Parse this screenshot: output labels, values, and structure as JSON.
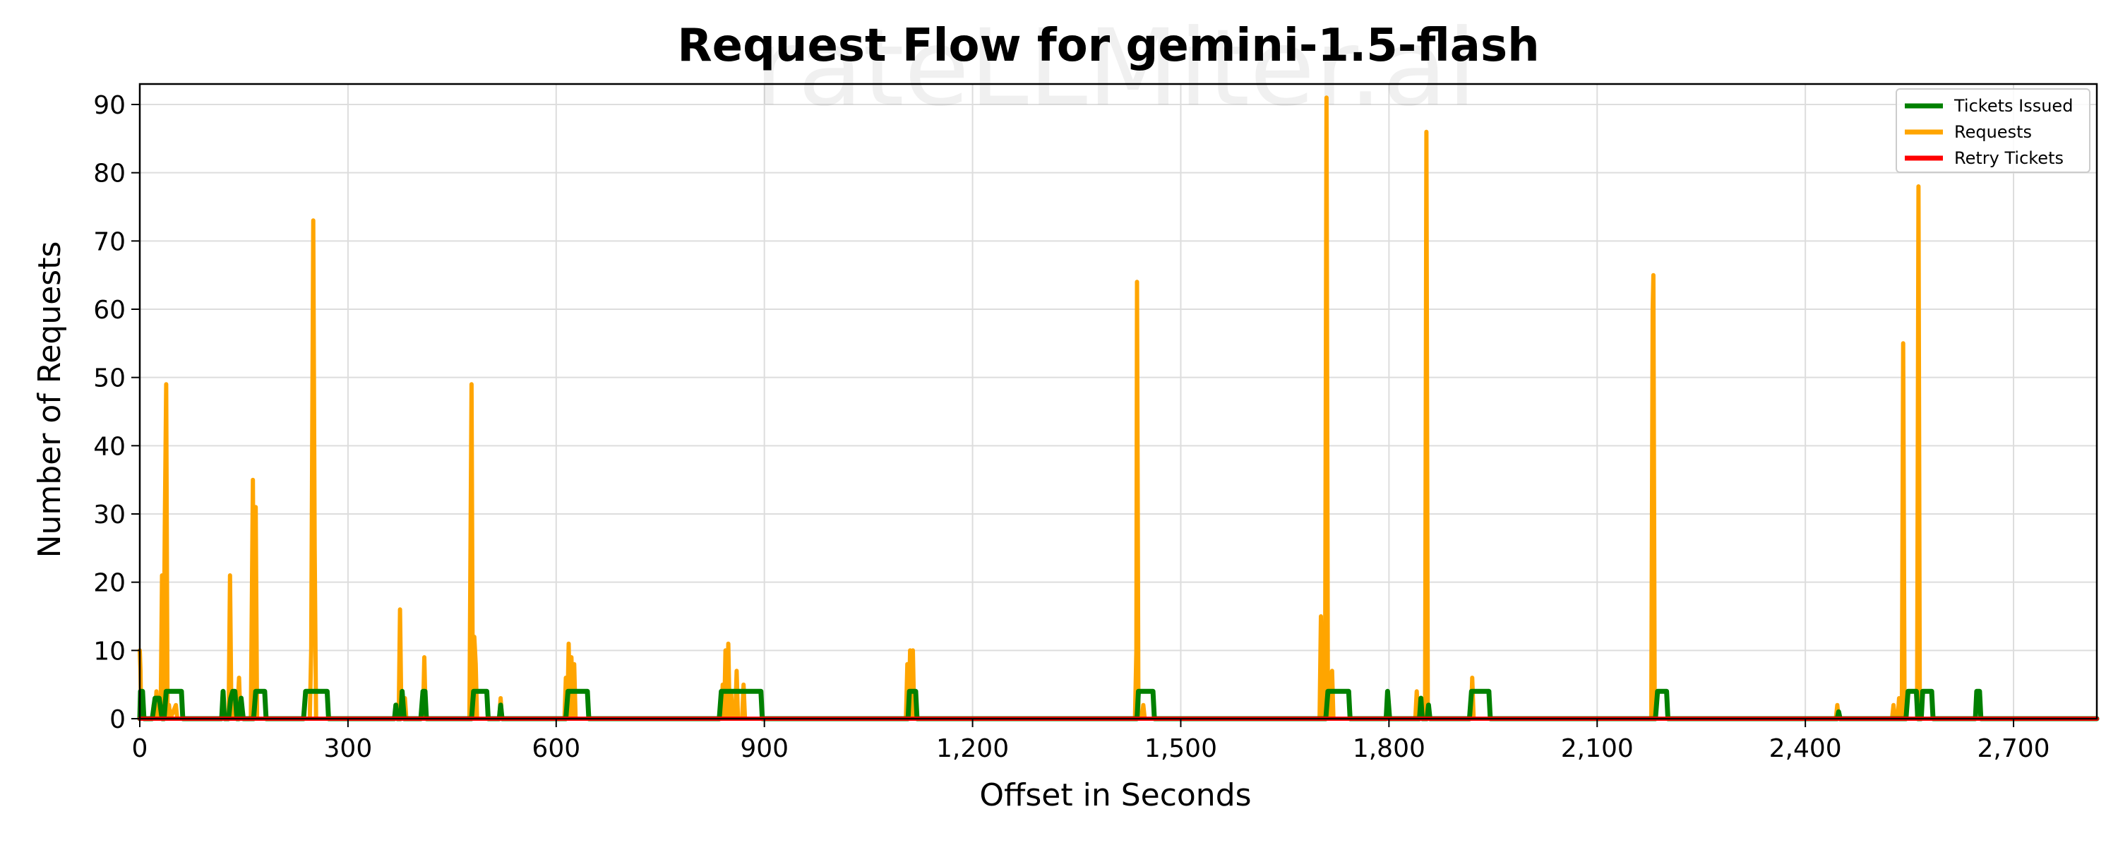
{
  "chart_data": {
    "type": "line",
    "title": "Request Flow for gemini-1.5-flash",
    "xlabel": "Offset in Seconds",
    "ylabel": "Number of Requests",
    "watermark": "rateLLMiter.ai",
    "xlim": [
      0,
      2820
    ],
    "ylim": [
      0,
      93
    ],
    "xticks": [
      0,
      300,
      600,
      900,
      1200,
      1500,
      1800,
      2100,
      2400,
      2700
    ],
    "xtick_labels": [
      "0",
      "300",
      "600",
      "900",
      "1,200",
      "1,500",
      "1,800",
      "2,100",
      "2,400",
      "2,700"
    ],
    "yticks": [
      0,
      10,
      20,
      30,
      40,
      50,
      60,
      70,
      80,
      90
    ],
    "ytick_labels": [
      "0",
      "10",
      "20",
      "30",
      "40",
      "50",
      "60",
      "70",
      "80",
      "90"
    ],
    "grid": true,
    "legend_position": "top-right",
    "series": [
      {
        "name": "Tickets Issued",
        "color": "#008000",
        "points": [
          [
            0,
            0
          ],
          [
            1,
            4
          ],
          [
            4,
            4
          ],
          [
            6,
            0
          ],
          [
            18,
            0
          ],
          [
            22,
            3
          ],
          [
            28,
            3
          ],
          [
            32,
            0
          ],
          [
            35,
            0
          ],
          [
            38,
            4
          ],
          [
            60,
            4
          ],
          [
            62,
            0
          ],
          [
            118,
            0
          ],
          [
            120,
            4
          ],
          [
            122,
            0
          ],
          [
            128,
            0
          ],
          [
            131,
            3
          ],
          [
            134,
            4
          ],
          [
            137,
            4
          ],
          [
            140,
            0
          ],
          [
            143,
            0
          ],
          [
            146,
            3
          ],
          [
            149,
            0
          ],
          [
            164,
            0
          ],
          [
            167,
            4
          ],
          [
            180,
            4
          ],
          [
            182,
            0
          ],
          [
            236,
            0
          ],
          [
            239,
            4
          ],
          [
            270,
            4
          ],
          [
            272,
            0
          ],
          [
            367,
            0
          ],
          [
            369,
            2
          ],
          [
            371,
            0
          ],
          [
            376,
            0
          ],
          [
            378,
            4
          ],
          [
            381,
            0
          ],
          [
            405,
            0
          ],
          [
            408,
            4
          ],
          [
            411,
            4
          ],
          [
            413,
            0
          ],
          [
            478,
            0
          ],
          [
            481,
            4
          ],
          [
            500,
            4
          ],
          [
            502,
            0
          ],
          [
            518,
            0
          ],
          [
            520,
            2
          ],
          [
            522,
            0
          ],
          [
            614,
            0
          ],
          [
            617,
            4
          ],
          [
            645,
            4
          ],
          [
            647,
            0
          ],
          [
            835,
            0
          ],
          [
            838,
            4
          ],
          [
            895,
            4
          ],
          [
            897,
            0
          ],
          [
            1107,
            0
          ],
          [
            1109,
            4
          ],
          [
            1118,
            4
          ],
          [
            1120,
            0
          ],
          [
            1437,
            0
          ],
          [
            1439,
            4
          ],
          [
            1460,
            4
          ],
          [
            1462,
            0
          ],
          [
            1709,
            0
          ],
          [
            1712,
            4
          ],
          [
            1742,
            4
          ],
          [
            1744,
            0
          ],
          [
            1796,
            0
          ],
          [
            1798,
            4
          ],
          [
            1801,
            0
          ],
          [
            1844,
            0
          ],
          [
            1846,
            3
          ],
          [
            1848,
            0
          ],
          [
            1855,
            0
          ],
          [
            1857,
            2
          ],
          [
            1859,
            0
          ],
          [
            1916,
            0
          ],
          [
            1919,
            4
          ],
          [
            1944,
            4
          ],
          [
            1946,
            0
          ],
          [
            2184,
            0
          ],
          [
            2187,
            4
          ],
          [
            2200,
            4
          ],
          [
            2202,
            0
          ],
          [
            2446,
            0
          ],
          [
            2448,
            1
          ],
          [
            2450,
            0
          ],
          [
            2545,
            0
          ],
          [
            2548,
            4
          ],
          [
            2560,
            4
          ],
          [
            2562,
            0
          ],
          [
            2567,
            0
          ],
          [
            2569,
            4
          ],
          [
            2582,
            4
          ],
          [
            2584,
            0
          ],
          [
            2645,
            0
          ],
          [
            2647,
            4
          ],
          [
            2651,
            4
          ],
          [
            2653,
            0
          ],
          [
            2820,
            0
          ]
        ]
      },
      {
        "name": "Requests",
        "color": "#ffa500",
        "points": [
          [
            0,
            10
          ],
          [
            1,
            7
          ],
          [
            2,
            0
          ],
          [
            18,
            0
          ],
          [
            20,
            2
          ],
          [
            22,
            0
          ],
          [
            24,
            4
          ],
          [
            26,
            0
          ],
          [
            28,
            3
          ],
          [
            30,
            0
          ],
          [
            32,
            21
          ],
          [
            34,
            0
          ],
          [
            36,
            28
          ],
          [
            38,
            49
          ],
          [
            40,
            0
          ],
          [
            42,
            2
          ],
          [
            44,
            0
          ],
          [
            52,
            2
          ],
          [
            54,
            0
          ],
          [
            128,
            0
          ],
          [
            130,
            21
          ],
          [
            132,
            0
          ],
          [
            134,
            3
          ],
          [
            136,
            0
          ],
          [
            140,
            0
          ],
          [
            143,
            6
          ],
          [
            145,
            0
          ],
          [
            160,
            0
          ],
          [
            163,
            35
          ],
          [
            165,
            0
          ],
          [
            167,
            31
          ],
          [
            169,
            0
          ],
          [
            245,
            0
          ],
          [
            247,
            10
          ],
          [
            250,
            73
          ],
          [
            252,
            25
          ],
          [
            254,
            0
          ],
          [
            373,
            0
          ],
          [
            375,
            16
          ],
          [
            377,
            0
          ],
          [
            380,
            0
          ],
          [
            382,
            3
          ],
          [
            384,
            0
          ],
          [
            408,
            0
          ],
          [
            410,
            9
          ],
          [
            412,
            0
          ],
          [
            475,
            0
          ],
          [
            478,
            49
          ],
          [
            480,
            0
          ],
          [
            482,
            12
          ],
          [
            484,
            8
          ],
          [
            486,
            0
          ],
          [
            518,
            0
          ],
          [
            520,
            3
          ],
          [
            522,
            0
          ],
          [
            612,
            0
          ],
          [
            614,
            6
          ],
          [
            616,
            0
          ],
          [
            618,
            11
          ],
          [
            620,
            0
          ],
          [
            622,
            9
          ],
          [
            624,
            0
          ],
          [
            626,
            8
          ],
          [
            628,
            0
          ],
          [
            838,
            0
          ],
          [
            840,
            5
          ],
          [
            842,
            0
          ],
          [
            844,
            10
          ],
          [
            846,
            0
          ],
          [
            848,
            11
          ],
          [
            850,
            0
          ],
          [
            852,
            4
          ],
          [
            854,
            0
          ],
          [
            858,
            0
          ],
          [
            860,
            7
          ],
          [
            862,
            0
          ],
          [
            868,
            0
          ],
          [
            870,
            5
          ],
          [
            872,
            0
          ],
          [
            1104,
            0
          ],
          [
            1106,
            8
          ],
          [
            1108,
            0
          ],
          [
            1110,
            10
          ],
          [
            1112,
            0
          ],
          [
            1114,
            10
          ],
          [
            1116,
            0
          ],
          [
            1434,
            0
          ],
          [
            1436,
            10
          ],
          [
            1437,
            64
          ],
          [
            1439,
            0
          ],
          [
            1444,
            0
          ],
          [
            1446,
            2
          ],
          [
            1448,
            0
          ],
          [
            1700,
            0
          ],
          [
            1702,
            15
          ],
          [
            1704,
            0
          ],
          [
            1706,
            0
          ],
          [
            1708,
            5
          ],
          [
            1710,
            91
          ],
          [
            1712,
            0
          ],
          [
            1716,
            0
          ],
          [
            1718,
            7
          ],
          [
            1720,
            0
          ],
          [
            1838,
            0
          ],
          [
            1840,
            4
          ],
          [
            1842,
            0
          ],
          [
            1852,
            0
          ],
          [
            1854,
            86
          ],
          [
            1856,
            0
          ],
          [
            1918,
            0
          ],
          [
            1920,
            6
          ],
          [
            1922,
            0
          ],
          [
            2178,
            0
          ],
          [
            2180,
            60
          ],
          [
            2181,
            65
          ],
          [
            2183,
            0
          ],
          [
            2444,
            0
          ],
          [
            2446,
            2
          ],
          [
            2448,
            0
          ],
          [
            2525,
            0
          ],
          [
            2527,
            2
          ],
          [
            2529,
            0
          ],
          [
            2533,
            0
          ],
          [
            2535,
            3
          ],
          [
            2537,
            0
          ],
          [
            2539,
            0
          ],
          [
            2541,
            55
          ],
          [
            2543,
            0
          ],
          [
            2561,
            0
          ],
          [
            2563,
            78
          ],
          [
            2565,
            0
          ],
          [
            2820,
            0
          ]
        ]
      },
      {
        "name": "Retry Tickets",
        "color": "#ff0000",
        "points": [
          [
            0,
            0
          ],
          [
            2820,
            0
          ]
        ]
      }
    ]
  }
}
